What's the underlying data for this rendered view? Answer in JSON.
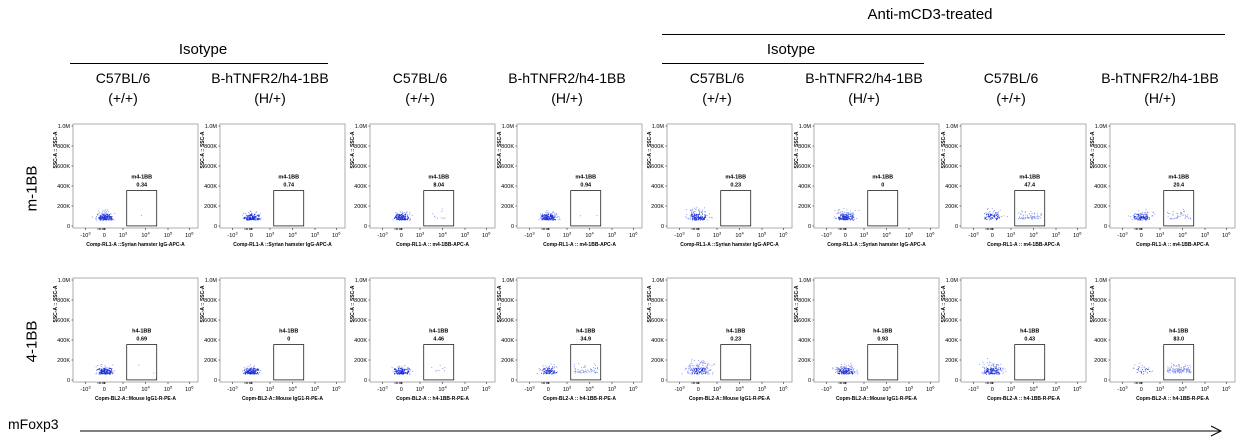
{
  "top_header": "Anti-mCD3-treated",
  "group_headers": [
    "Isotype",
    "Isotype"
  ],
  "columns": [
    {
      "name": "C57BL/6",
      "genotype": "(+/+)"
    },
    {
      "name": "B-hTNFR2/h4-1BB",
      "genotype": "(H/+)"
    },
    {
      "name": "C57BL/6",
      "genotype": "(+/+)"
    },
    {
      "name": "B-hTNFR2/h4-1BB",
      "genotype": "(H/+)"
    },
    {
      "name": "C57BL/6",
      "genotype": "(+/+)"
    },
    {
      "name": "B-hTNFR2/h4-1BB",
      "genotype": "(H/+)"
    },
    {
      "name": "C57BL/6",
      "genotype": "(+/+)"
    },
    {
      "name": "B-hTNFR2/h4-1BB",
      "genotype": "(H/+)"
    }
  ],
  "row_labels": [
    "m-1BB",
    "4-1BB"
  ],
  "x_axis_label": "mFoxp3",
  "chart_data": {
    "type": "scatter",
    "y_axis_label": "SSC-A :: SSC-A",
    "y_ticks": [
      "0",
      "200K",
      "400K",
      "600K",
      "800K",
      "1.0M"
    ],
    "x_ticks": [
      "-10",
      "0",
      "10",
      "10",
      "10",
      "10"
    ],
    "x_tick_exponents": [
      "3",
      "",
      "3",
      "4",
      "5",
      "6"
    ],
    "panels": [
      {
        "row": 0,
        "col": 0,
        "gate": "m4-1BB",
        "value": "0.34",
        "xlabel": "Comp-RL1-A ::Syrian hamster IgG-APC-A",
        "spread": 0.3
      },
      {
        "row": 0,
        "col": 1,
        "gate": "m4-1BB",
        "value": "0.74",
        "xlabel": "Comp-RL1-A ::Syrian hamster IgG-APC-A",
        "spread": 0.2
      },
      {
        "row": 0,
        "col": 2,
        "gate": "m4-1BB",
        "value": "8.04",
        "xlabel": "Comp-RL1-A :: m4-1BB-APC-A",
        "spread": 0.25
      },
      {
        "row": 0,
        "col": 3,
        "gate": "m4-1BB",
        "value": "0.94",
        "xlabel": "Comp-RL1-A :: m4-1BB-APC-A",
        "spread": 0.25
      },
      {
        "row": 0,
        "col": 4,
        "gate": "m4-1BB",
        "value": "0.23",
        "xlabel": "Comp-RL1-A ::Syrian hamster IgG-APC-A",
        "spread": 0.7
      },
      {
        "row": 0,
        "col": 5,
        "gate": "m4-1BB",
        "value": "0",
        "xlabel": "Comp-RL1-A ::Syrian hamster IgG-APC-A",
        "spread": 0.45
      },
      {
        "row": 0,
        "col": 6,
        "gate": "m4-1BB",
        "value": "47.4",
        "xlabel": "Comp-RL1-A :: m4-1BB-APC-A",
        "spread": 0.55
      },
      {
        "row": 0,
        "col": 7,
        "gate": "m4-1BB",
        "value": "20.4",
        "xlabel": "Comp-RL1-A :: m4-1BB-APC-A",
        "spread": 0.45
      },
      {
        "row": 1,
        "col": 0,
        "gate": "h4-1BB",
        "value": "0.69",
        "xlabel": "Copm-BL2-A::Mouse IgG1-R-PE-A",
        "spread": 0.3
      },
      {
        "row": 1,
        "col": 1,
        "gate": "h4-1BB",
        "value": "0",
        "xlabel": "Copm-BL2-A::Mouse IgG1-R-PE-A",
        "spread": 0.2
      },
      {
        "row": 1,
        "col": 2,
        "gate": "h4-1BB",
        "value": "4.46",
        "xlabel": "Copm-BL2-A :: h4-1BB-R-PE-A",
        "spread": 0.25
      },
      {
        "row": 1,
        "col": 3,
        "gate": "h4-1BB",
        "value": "34.9",
        "xlabel": "Copm-BL2-A :: h4-1BB-R-PE-A",
        "spread": 0.3
      },
      {
        "row": 1,
        "col": 4,
        "gate": "h4-1BB",
        "value": "0.23",
        "xlabel": "Copm-BL2-A::Mouse IgG1-R-PE-A",
        "spread": 0.8
      },
      {
        "row": 1,
        "col": 5,
        "gate": "h4-1BB",
        "value": "0.93",
        "xlabel": "Copm-BL2-A::Mouse IgG1-R-PE-A",
        "spread": 0.6
      },
      {
        "row": 1,
        "col": 6,
        "gate": "h4-1BB",
        "value": "0.43",
        "xlabel": "Copm-BL2-A :: h4-1BB-R-PE-A",
        "spread": 0.7
      },
      {
        "row": 1,
        "col": 7,
        "gate": "h4-1BB",
        "value": "83.0",
        "xlabel": "Copm-BL2-A :: h4-1BB-R-PE-A",
        "spread": 0.4
      }
    ]
  }
}
